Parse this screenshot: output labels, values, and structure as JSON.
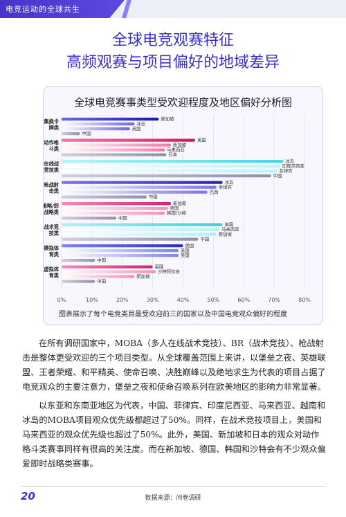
{
  "header": {
    "section_label": "电竞运动的全球共生"
  },
  "title": {
    "line1": "全球电竞观赛特征",
    "line2": "高频观赛与项目偏好的地域差异"
  },
  "colors": {
    "accent": "#3b2fc9",
    "series": [
      "#2e2ab8",
      "#e8336f",
      "#6fe3ee",
      "#3a2ec3",
      "#e94c8a",
      "#5fdbea",
      "#3a3fd0",
      "#e1407e"
    ]
  },
  "chart_data": {
    "type": "bar",
    "orientation": "horizontal",
    "title": "全球电竞赛事类型受欢迎程度及地区偏好分析图",
    "xlim": [
      0,
      80
    ],
    "x_ticks": [
      "0%",
      "10%",
      "20%",
      "30%",
      "40%",
      "50%",
      "60%",
      "70%",
      "80%"
    ],
    "groups": [
      {
        "category": "集换卡牌类",
        "bars": [
          {
            "label": "新加坡",
            "value": 32
          },
          {
            "label": "冰岛",
            "value": 24
          },
          {
            "label": "英国",
            "value": 22.5
          },
          {
            "label": "中国",
            "value": 6
          }
        ]
      },
      {
        "category": "动作格斗类",
        "bars": [
          {
            "label": "美国",
            "value": 44
          },
          {
            "label": "新加坡",
            "value": 36
          },
          {
            "label": "马来西亚",
            "value": 34
          },
          {
            "label": "日本",
            "value": 34.5
          }
        ]
      },
      {
        "category": "多人在线战术竞技类",
        "bars": [
          {
            "label": "冰岛",
            "value": 73
          },
          {
            "label": "印度尼西亚",
            "value": 72
          },
          {
            "label": "菲律宾",
            "value": 71
          },
          {
            "label": "中国",
            "value": 69
          }
        ]
      },
      {
        "category": "枪战射击类",
        "bars": [
          {
            "label": "冰岛",
            "value": 53
          },
          {
            "label": "菲律宾",
            "value": 51
          },
          {
            "label": "巴西",
            "value": 48
          },
          {
            "label": "中国",
            "value": 28
          }
        ]
      },
      {
        "category": "策略/即时战略类",
        "bars": [
          {
            "label": "新加坡",
            "value": 36
          },
          {
            "label": "德国",
            "value": 35
          },
          {
            "label": "韩国/沙特",
            "value": 34
          },
          {
            "label": "中国",
            "value": 18
          }
        ]
      },
      {
        "category": "战术竞技类",
        "bars": [
          {
            "label": "美国",
            "value": 53
          },
          {
            "label": "马来西亚",
            "value": 52
          },
          {
            "label": "新加坡",
            "value": 51
          },
          {
            "label": "中国",
            "value": 45
          }
        ]
      },
      {
        "category": "模拟体育类",
        "bars": [
          {
            "label": "德国",
            "value": 40
          },
          {
            "label": "英国",
            "value": 38.5
          },
          {
            "label": "美国",
            "value": 38.5
          },
          {
            "label": "中国",
            "value": 11
          }
        ]
      },
      {
        "category": "虚拟体育类",
        "bars": [
          {
            "label": "英国",
            "value": 30
          },
          {
            "label": "沙特阿拉伯",
            "value": 31
          },
          {
            "label": "新加坡",
            "value": 24
          },
          {
            "label": "中国",
            "value": 11
          }
        ]
      }
    ]
  },
  "chart_caption": "图表展示了每个电竞类目最受欢迎前三的国家以及中国电竞观众偏好的程度",
  "body": {
    "paragraph1": "在所有调研国家中，MOBA（多人在线战术竞技）、BR（战术竞技）、枪战射击是整体更受欢迎的三个项目类型。从全球覆盖范围上来讲，以堡垒之夜、英雄联盟、王者荣耀、和平精英、使命召唤、决胜巅峰以及绝地求生为代表的项目占据了电竞观众的主要注意力，堡垒之夜和使命召唤系列在欧美地区的影响力非常显著。",
    "paragraph2": "以东亚和东南亚地区为代表，中国、菲律宾、印度尼西亚、马来西亚、越南和冰岛的MOBA项目观众优先级都超过了50%。同样，在战术竞技项目上，美国和马来西亚的观众优先级也超过了50%。此外，美国、新加坡和日本的观众对动作格斗类赛事同样有很高的关注度。而在新加坡、德国、韩国和沙特会有不少观众偏爱即时战略类赛事。"
  },
  "footer": {
    "page_number": "20",
    "source": "数据来源：问卷调研"
  }
}
